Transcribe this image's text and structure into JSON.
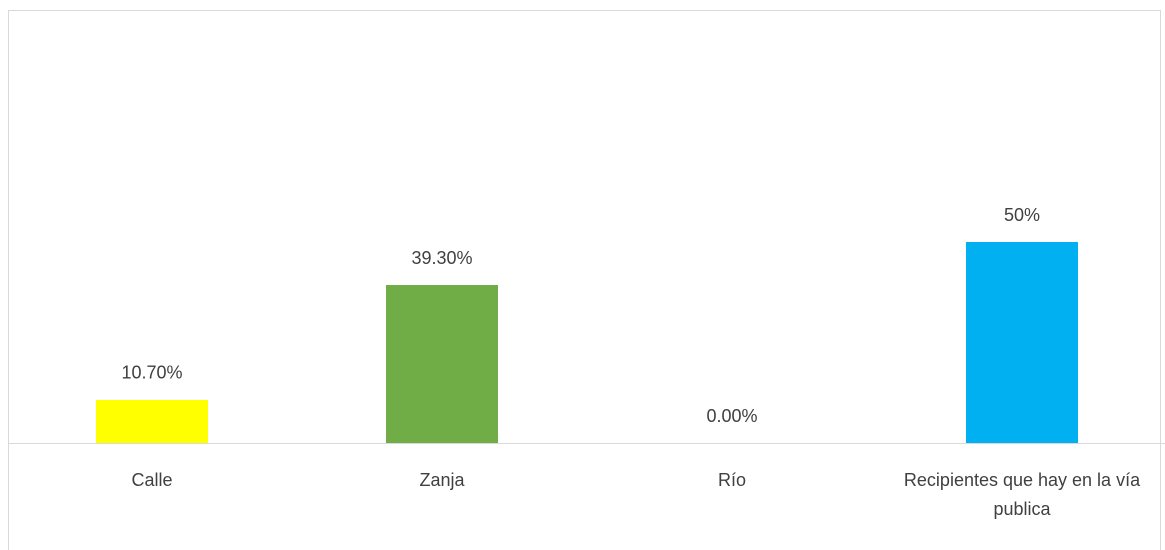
{
  "chart_data": {
    "type": "bar",
    "categories": [
      "Calle",
      "Zanja",
      "Río",
      "Recipientes que hay en la vía publica"
    ],
    "values": [
      10.7,
      39.3,
      0,
      50
    ],
    "value_labels": [
      "10.70%",
      "39.30%",
      "0.00%",
      "50%"
    ],
    "colors": [
      "#ffff00",
      "#70ad47",
      "#70ad47",
      "#00b0f0"
    ]
  }
}
